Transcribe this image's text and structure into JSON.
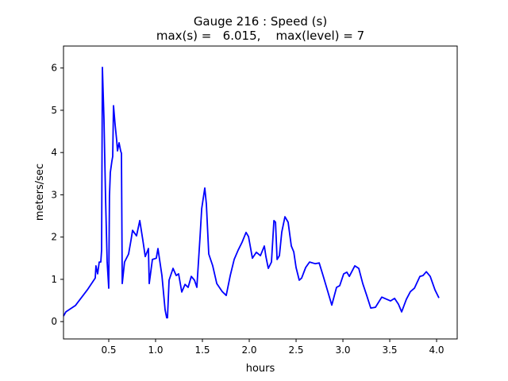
{
  "chart_data": {
    "type": "line",
    "title": "Gauge 216 : Speed (s)",
    "subtitle": "max(s) =   6.015,    max(level) = 7",
    "xlabel": "hours",
    "ylabel": "meters/sec",
    "xlim": [
      0.017,
      4.22
    ],
    "ylim": [
      -0.41,
      6.52
    ],
    "xticks": [
      0.5,
      1.0,
      1.5,
      2.0,
      2.5,
      3.0,
      3.5,
      4.0
    ],
    "xtick_labels": [
      "0.5",
      "1.0",
      "1.5",
      "2.0",
      "2.5",
      "3.0",
      "3.5",
      "4.0"
    ],
    "yticks": [
      0,
      1,
      2,
      3,
      4,
      5,
      6
    ],
    "ytick_labels": [
      "0",
      "1",
      "2",
      "3",
      "4",
      "5",
      "6"
    ],
    "grid": false,
    "series": [
      {
        "name": "speed",
        "color": "#0000ff",
        "x": [
          0.017,
          0.042,
          0.144,
          0.271,
          0.356,
          0.364,
          0.381,
          0.398,
          0.415,
          0.424,
          0.432,
          0.449,
          0.466,
          0.483,
          0.5,
          0.508,
          0.517,
          0.534,
          0.542,
          0.551,
          0.568,
          0.585,
          0.593,
          0.61,
          0.627,
          0.636,
          0.644,
          0.669,
          0.712,
          0.737,
          0.754,
          0.797,
          0.831,
          0.864,
          0.89,
          0.924,
          0.932,
          0.966,
          1.008,
          1.025,
          1.068,
          1.102,
          1.119,
          1.127,
          1.144,
          1.186,
          1.22,
          1.246,
          1.28,
          1.314,
          1.347,
          1.381,
          1.415,
          1.441,
          1.475,
          1.492,
          1.525,
          1.542,
          1.568,
          1.61,
          1.653,
          1.712,
          1.754,
          1.797,
          1.839,
          1.881,
          1.924,
          1.966,
          1.992,
          2.034,
          2.076,
          2.119,
          2.161,
          2.178,
          2.203,
          2.237,
          2.263,
          2.28,
          2.297,
          2.322,
          2.347,
          2.381,
          2.415,
          2.449,
          2.475,
          2.5,
          2.534,
          2.559,
          2.602,
          2.644,
          2.703,
          2.746,
          2.788,
          2.839,
          2.881,
          2.932,
          2.966,
          3.008,
          3.042,
          3.068,
          3.127,
          3.169,
          3.212,
          3.254,
          3.297,
          3.347,
          3.415,
          3.466,
          3.508,
          3.551,
          3.593,
          3.627,
          3.678,
          3.72,
          3.763,
          3.822,
          3.856,
          3.89,
          3.932,
          3.983,
          4.025
        ],
        "y": [
          0.13,
          0.23,
          0.38,
          0.75,
          1.03,
          1.32,
          1.13,
          1.41,
          1.41,
          1.69,
          6.015,
          4.79,
          2.91,
          1.41,
          0.79,
          2.97,
          3.53,
          3.8,
          3.91,
          5.11,
          4.66,
          4.29,
          4.04,
          4.23,
          4.04,
          3.98,
          0.9,
          1.41,
          1.6,
          1.92,
          2.16,
          2.03,
          2.39,
          1.92,
          1.54,
          1.73,
          0.9,
          1.47,
          1.5,
          1.73,
          1.09,
          0.28,
          0.09,
          0.09,
          0.98,
          1.26,
          1.09,
          1.13,
          0.7,
          0.88,
          0.81,
          1.07,
          0.98,
          0.81,
          2.03,
          2.67,
          3.16,
          2.78,
          1.6,
          1.32,
          0.9,
          0.71,
          0.62,
          1.09,
          1.47,
          1.69,
          1.88,
          2.11,
          2.01,
          1.5,
          1.64,
          1.56,
          1.79,
          1.54,
          1.26,
          1.41,
          2.39,
          2.35,
          1.47,
          1.56,
          2.12,
          2.48,
          2.35,
          1.79,
          1.65,
          1.28,
          0.98,
          1.03,
          1.28,
          1.41,
          1.37,
          1.39,
          1.09,
          0.71,
          0.39,
          0.81,
          0.85,
          1.13,
          1.17,
          1.07,
          1.32,
          1.26,
          0.9,
          0.62,
          0.32,
          0.34,
          0.58,
          0.53,
          0.49,
          0.55,
          0.41,
          0.23,
          0.53,
          0.71,
          0.79,
          1.07,
          1.09,
          1.18,
          1.07,
          0.75,
          0.56
        ]
      }
    ]
  }
}
